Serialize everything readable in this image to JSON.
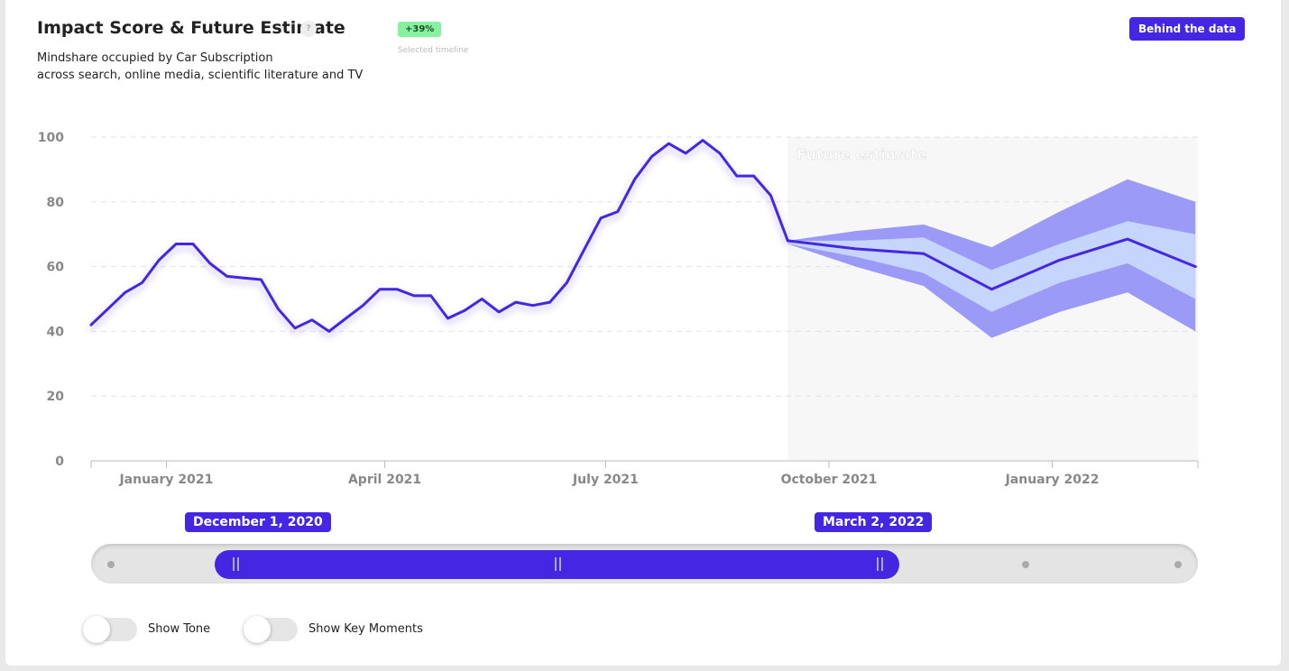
{
  "header": {
    "title": "Impact Score & Future Estimate",
    "help": "?",
    "badge": "+39%",
    "badge_caption": "Selected timeline",
    "button": "Behind the data",
    "subtitle": [
      "Mindshare occupied by Car Subscription",
      "across search, online media, scientific literature and TV"
    ]
  },
  "chart_data": {
    "type": "line",
    "xlim": [
      "2020-12-01",
      "2022-03-02"
    ],
    "xticks": [
      {
        "value": "2021-01-01",
        "label": "January 2021"
      },
      {
        "value": "2021-04-01",
        "label": "April 2021"
      },
      {
        "value": "2021-07-01",
        "label": "July 2021"
      },
      {
        "value": "2021-10-01",
        "label": "October 2021"
      },
      {
        "value": "2022-01-01",
        "label": "January 2022"
      }
    ],
    "ylim": [
      0,
      100
    ],
    "yticks": [
      0,
      20,
      40,
      60,
      80,
      100
    ],
    "grid": true,
    "annotation": "Future estimate",
    "series": [
      {
        "color": "#4527e3",
        "x": [
          "2020-12-01",
          "2020-12-08",
          "2020-12-15",
          "2020-12-22",
          "2020-12-29",
          "2021-01-05",
          "2021-01-12",
          "2021-01-19",
          "2021-01-26",
          "2021-02-02",
          "2021-02-09",
          "2021-02-16",
          "2021-02-23",
          "2021-03-02",
          "2021-03-09",
          "2021-03-16",
          "2021-03-23",
          "2021-03-30",
          "2021-04-06",
          "2021-04-13",
          "2021-04-20",
          "2021-04-27",
          "2021-05-04",
          "2021-05-11",
          "2021-05-18",
          "2021-05-25",
          "2021-06-01",
          "2021-06-08",
          "2021-06-15",
          "2021-06-22",
          "2021-06-29",
          "2021-07-06",
          "2021-07-13",
          "2021-07-20",
          "2021-07-27",
          "2021-08-03",
          "2021-08-10",
          "2021-08-17",
          "2021-08-24",
          "2021-08-31",
          "2021-09-07",
          "2021-09-14"
        ],
        "values": [
          42,
          47,
          52,
          55,
          62,
          67,
          67,
          61,
          57,
          56.5,
          56,
          47,
          41,
          43.5,
          40,
          44,
          48,
          53,
          53,
          51,
          51,
          44,
          46.5,
          50,
          46,
          49,
          48,
          49,
          55,
          65,
          75,
          77,
          87,
          94,
          98,
          95,
          99,
          95,
          88,
          88,
          82,
          68
        ]
      }
    ],
    "forecast": {
      "color": "#4527e3",
      "inner_color": "#c5d5fc",
      "outer_color": "#9b9af6",
      "shade": "#f7f7f7",
      "x": [
        "2021-09-14",
        "2021-10-12",
        "2021-11-09",
        "2021-12-07",
        "2022-01-04",
        "2022-02-01",
        "2022-03-01"
      ],
      "values": [
        68,
        65.5,
        64,
        53,
        62,
        68.5,
        60
      ],
      "inner_low": [
        67,
        63,
        58,
        46,
        55,
        61,
        50
      ],
      "inner_high": [
        68,
        68,
        69,
        59,
        67,
        74,
        70
      ],
      "outer_low": [
        67,
        60,
        54,
        38,
        46,
        52,
        40
      ],
      "outer_high": [
        68,
        71,
        73,
        66,
        77,
        87,
        80
      ]
    }
  },
  "slider": {
    "start": "December 1, 2020",
    "end": "March 2, 2022"
  },
  "toggles": [
    "Show Tone",
    "Show Key Moments"
  ]
}
